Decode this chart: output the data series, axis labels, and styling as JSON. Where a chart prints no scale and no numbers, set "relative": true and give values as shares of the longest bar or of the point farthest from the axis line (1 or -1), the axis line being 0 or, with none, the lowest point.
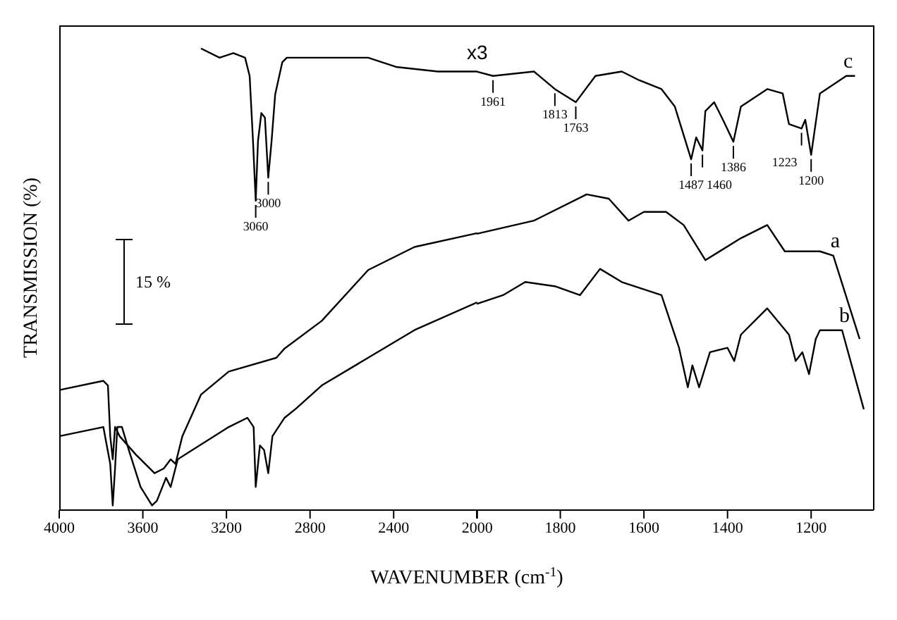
{
  "chart_data": [
    {
      "type": "line",
      "relative": true,
      "ylabel": "TRANSMISSION (%)",
      "xlim": [
        4000,
        2000
      ],
      "xticks": [
        4000,
        3600,
        3200,
        2800,
        2400,
        2000
      ],
      "marker": "none",
      "line_style": "solid",
      "tick_labels": "x",
      "series": [
        {
          "color": "#000000",
          "x": [
            4000,
            3789,
            3767,
            3756,
            3744,
            3733,
            3711,
            3633,
            3544,
            3500,
            3467,
            3444,
            3411,
            3322,
            3189,
            2961,
            2922,
            2744,
            2522,
            2300,
            2000
          ],
          "values": [
            0.26,
            0.28,
            0.27,
            0.16,
            0.11,
            0.18,
            0.16,
            0.12,
            0.08,
            0.09,
            0.11,
            0.1,
            0.16,
            0.25,
            0.3,
            0.33,
            0.35,
            0.41,
            0.52,
            0.57,
            0.6
          ]
        },
        {
          "color": "#000000",
          "x": [
            4000,
            3789,
            3756,
            3744,
            3733,
            3722,
            3700,
            3667,
            3611,
            3556,
            3533,
            3489,
            3467,
            3433,
            3189,
            3100,
            3070,
            3060,
            3040,
            3020,
            3000,
            2980,
            2922,
            2867,
            2744,
            2522,
            2300,
            2000
          ],
          "values": [
            0.16,
            0.18,
            0.1,
            0.01,
            0.09,
            0.18,
            0.18,
            0.13,
            0.05,
            0.01,
            0.02,
            0.07,
            0.05,
            0.11,
            0.18,
            0.2,
            0.18,
            0.05,
            0.14,
            0.13,
            0.08,
            0.16,
            0.2,
            0.22,
            0.27,
            0.33,
            0.39,
            0.45
          ]
        },
        {
          "color": "#000000",
          "x": [
            3322,
            3233,
            3167,
            3111,
            3089,
            3073,
            3060,
            3049,
            3033,
            3016,
            3000,
            2984,
            2967,
            2933,
            2911,
            2867,
            2833,
            2522,
            2389,
            2189,
            2000
          ],
          "values": [
            1.0,
            0.98,
            0.99,
            0.98,
            0.94,
            0.8,
            0.67,
            0.8,
            0.86,
            0.85,
            0.72,
            0.8,
            0.9,
            0.97,
            0.98,
            0.98,
            0.98,
            0.98,
            0.96,
            0.95,
            0.95
          ]
        }
      ],
      "annotations": [
        "x3",
        "15 %",
        {
          "text": "3060",
          "x": 3060,
          "y": 0.67
        },
        {
          "text": "3000",
          "x": 3000,
          "y": 0.72
        }
      ]
    },
    {
      "type": "line",
      "relative": true,
      "xlabel": "WAVENUMBER (cm$^{-1}$)",
      "xlim": [
        2000,
        1050
      ],
      "xticks": [
        {
          "value": 2000,
          "label": null
        },
        1800,
        1600,
        1400,
        1200
      ],
      "marker": "none",
      "line_style": "solid",
      "tick_labels": "x",
      "series": [
        {
          "name": "a",
          "color": "#000000",
          "x": [
            2000,
            1863,
            1737,
            1684,
            1637,
            1600,
            1547,
            1505,
            1453,
            1368,
            1305,
            1263,
            1221,
            1179,
            1147,
            1084
          ],
          "values": [
            0.63,
            0.66,
            0.72,
            0.71,
            0.66,
            0.68,
            0.68,
            0.65,
            0.57,
            0.62,
            0.65,
            0.59,
            0.59,
            0.59,
            0.58,
            0.39
          ]
        },
        {
          "name": "b",
          "color": "#000000",
          "x": [
            2000,
            1937,
            1884,
            1811,
            1753,
            1705,
            1653,
            1558,
            1516,
            1495,
            1484,
            1468,
            1442,
            1400,
            1384,
            1368,
            1305,
            1253,
            1237,
            1221,
            1205,
            1189,
            1179,
            1126,
            1074
          ],
          "values": [
            0.47,
            0.49,
            0.52,
            0.51,
            0.49,
            0.55,
            0.52,
            0.49,
            0.37,
            0.28,
            0.33,
            0.28,
            0.36,
            0.37,
            0.34,
            0.4,
            0.46,
            0.4,
            0.34,
            0.36,
            0.31,
            0.39,
            0.41,
            0.41,
            0.23
          ]
        },
        {
          "name": "c",
          "color": "#000000",
          "x": [
            2000,
            1961,
            1863,
            1813,
            1763,
            1716,
            1653,
            1611,
            1558,
            1526,
            1487,
            1475,
            1460,
            1453,
            1432,
            1411,
            1386,
            1368,
            1305,
            1268,
            1253,
            1223,
            1214,
            1200,
            1179,
            1116,
            1095
          ],
          "values": [
            1.0,
            0.99,
            1.0,
            0.96,
            0.93,
            0.99,
            1.0,
            0.98,
            0.96,
            0.92,
            0.8,
            0.85,
            0.82,
            0.91,
            0.93,
            0.89,
            0.84,
            0.92,
            0.96,
            0.95,
            0.88,
            0.87,
            0.89,
            0.81,
            0.95,
            0.99,
            0.99
          ]
        }
      ],
      "annotations": [
        {
          "text": "1961",
          "x": 1961,
          "y": 0.99
        },
        {
          "text": "1813",
          "x": 1813,
          "y": 0.96
        },
        {
          "text": "1763",
          "x": 1763,
          "y": 0.93
        },
        {
          "text": "1487",
          "x": 1487,
          "y": 0.8
        },
        {
          "text": "1460",
          "x": 1460,
          "y": 0.82
        },
        {
          "text": "1386",
          "x": 1386,
          "y": 0.84
        },
        {
          "text": "1223",
          "x": 1223,
          "y": 0.87
        },
        {
          "text": "1200",
          "x": 1200,
          "y": 0.81
        }
      ]
    }
  ]
}
